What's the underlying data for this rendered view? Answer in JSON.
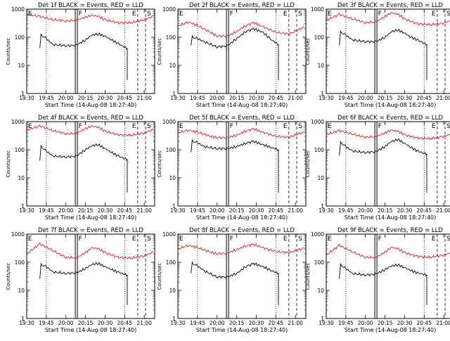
{
  "colors": {
    "events": "#000000",
    "lld": "#e02020",
    "frame": "#000000",
    "background": "#ffffff"
  },
  "common": {
    "xlabel": "Start Time (14-Aug-08 18:27:40)",
    "ylabel": "Counts/sec",
    "x_ticks": [
      "19:30",
      "19:45",
      "20:00",
      "20:15",
      "20:30",
      "20:45",
      "21:00"
    ],
    "y_ticks": [
      "1",
      "10",
      "100",
      "1000"
    ],
    "ylim": [
      1,
      1000
    ],
    "y_scale": "log",
    "markers": {
      "F": "20:08",
      "E": "20:55",
      "S": "21:01"
    }
  },
  "chart_data": [
    {
      "type": "line",
      "title": "Det 1f BLACK = Events, RED = LLD",
      "series": [
        {
          "name": "Events",
          "color": "#000000",
          "x": [
            "19:40",
            "19:41",
            "19:45",
            "19:50",
            "20:00",
            "20:08",
            "20:15",
            "20:20",
            "20:25",
            "20:30",
            "20:35",
            "20:40",
            "20:47",
            "20:47"
          ],
          "y": [
            40,
            120,
            90,
            55,
            50,
            52,
            80,
            120,
            130,
            110,
            80,
            60,
            40,
            3
          ]
        },
        {
          "name": "LLD",
          "color": "#e02020",
          "x": [
            "19:30",
            "19:40",
            "19:50",
            "20:00",
            "20:08",
            "20:15",
            "20:20",
            "20:25",
            "20:30",
            "20:40",
            "20:50",
            "21:00",
            "21:07"
          ],
          "y": [
            650,
            550,
            420,
            380,
            400,
            520,
            600,
            550,
            420,
            330,
            330,
            420,
            560
          ]
        }
      ]
    },
    {
      "type": "line",
      "title": "Det 2f BLACK = Events, RED = LLD",
      "series": [
        {
          "name": "Events",
          "color": "#000000",
          "x": [
            "19:40",
            "19:41",
            "19:45",
            "19:50",
            "20:00",
            "20:08",
            "20:15",
            "20:22",
            "20:28",
            "20:35",
            "20:42",
            "20:47",
            "20:47"
          ],
          "y": [
            50,
            100,
            90,
            70,
            45,
            50,
            90,
            160,
            200,
            150,
            80,
            55,
            3
          ]
        },
        {
          "name": "LLD",
          "color": "#e02020",
          "x": [
            "19:30",
            "19:38",
            "19:45",
            "19:55",
            "20:00",
            "20:08",
            "20:15",
            "20:22",
            "20:28",
            "20:35",
            "20:45",
            "20:55",
            "21:07"
          ],
          "y": [
            250,
            350,
            260,
            150,
            110,
            110,
            160,
            260,
            330,
            240,
            150,
            130,
            230
          ]
        }
      ]
    },
    {
      "type": "line",
      "title": "Det 3f BLACK = Events, RED = LLD",
      "series": [
        {
          "name": "Events",
          "color": "#000000",
          "x": [
            "19:40",
            "19:41",
            "19:45",
            "19:50",
            "20:00",
            "20:08",
            "20:15",
            "20:20",
            "20:25",
            "20:30",
            "20:35",
            "20:40",
            "20:47",
            "20:47"
          ],
          "y": [
            50,
            150,
            120,
            80,
            70,
            70,
            100,
            160,
            180,
            140,
            100,
            80,
            55,
            3
          ]
        },
        {
          "name": "LLD",
          "color": "#e02020",
          "x": [
            "19:30",
            "19:40",
            "19:50",
            "20:00",
            "20:08",
            "20:15",
            "20:20",
            "20:25",
            "20:30",
            "20:40",
            "20:50",
            "21:00",
            "21:07"
          ],
          "y": [
            400,
            650,
            450,
            330,
            350,
            550,
            750,
            650,
            450,
            300,
            280,
            320,
            420
          ]
        }
      ]
    },
    {
      "type": "line",
      "title": "Det 4f BLACK = Events, RED = LLD",
      "series": [
        {
          "name": "Events",
          "color": "#000000",
          "x": [
            "19:40",
            "19:41",
            "19:45",
            "19:50",
            "20:00",
            "20:08",
            "20:15",
            "20:20",
            "20:25",
            "20:30",
            "20:35",
            "20:40",
            "20:47",
            "20:47"
          ],
          "y": [
            40,
            130,
            90,
            60,
            55,
            60,
            100,
            140,
            150,
            110,
            80,
            60,
            45,
            3
          ]
        },
        {
          "name": "LLD",
          "color": "#e02020",
          "x": [
            "19:30",
            "19:40",
            "19:50",
            "20:00",
            "20:08",
            "20:15",
            "20:20",
            "20:25",
            "20:30",
            "20:40",
            "20:50",
            "21:00",
            "21:07"
          ],
          "y": [
            500,
            700,
            480,
            370,
            380,
            560,
            700,
            620,
            460,
            340,
            330,
            400,
            520
          ]
        }
      ]
    },
    {
      "type": "line",
      "title": "Det 5f BLACK = Events, RED = LLD",
      "series": [
        {
          "name": "Events",
          "color": "#000000",
          "x": [
            "19:40",
            "19:41",
            "19:45",
            "19:50",
            "20:00",
            "20:08",
            "20:15",
            "20:22",
            "20:28",
            "20:35",
            "20:42",
            "20:47",
            "20:47"
          ],
          "y": [
            80,
            200,
            180,
            130,
            110,
            110,
            130,
            170,
            200,
            150,
            120,
            100,
            3
          ]
        },
        {
          "name": "LLD",
          "color": "#e02020",
          "x": [
            "19:30",
            "19:38",
            "19:45",
            "19:55",
            "20:00",
            "20:08",
            "20:15",
            "20:22",
            "20:28",
            "20:35",
            "20:45",
            "20:55",
            "21:07"
          ],
          "y": [
            400,
            500,
            420,
            300,
            270,
            270,
            330,
            460,
            550,
            420,
            300,
            280,
            430
          ]
        }
      ]
    },
    {
      "type": "line",
      "title": "Det 6f BLACK = Events, RED = LLD",
      "series": [
        {
          "name": "Events",
          "color": "#000000",
          "x": [
            "19:40",
            "19:41",
            "19:45",
            "19:50",
            "20:00",
            "20:08",
            "20:15",
            "20:20",
            "20:25",
            "20:30",
            "20:35",
            "20:40",
            "20:47",
            "20:47"
          ],
          "y": [
            60,
            180,
            130,
            90,
            80,
            85,
            130,
            200,
            230,
            170,
            120,
            90,
            70,
            3
          ]
        },
        {
          "name": "LLD",
          "color": "#e02020",
          "x": [
            "19:30",
            "19:40",
            "19:50",
            "20:00",
            "20:08",
            "20:15",
            "20:20",
            "20:25",
            "20:30",
            "20:40",
            "20:50",
            "21:00",
            "21:07"
          ],
          "y": [
            350,
            480,
            360,
            280,
            290,
            400,
            500,
            450,
            340,
            260,
            250,
            300,
            380
          ]
        }
      ]
    },
    {
      "type": "line",
      "title": "Det 7f BLACK = Events, RED = LLD",
      "series": [
        {
          "name": "Events",
          "color": "#000000",
          "x": [
            "19:40",
            "19:41",
            "19:45",
            "19:50",
            "20:00",
            "20:08",
            "20:15",
            "20:20",
            "20:25",
            "20:30",
            "20:35",
            "20:40",
            "20:47",
            "20:47"
          ],
          "y": [
            25,
            80,
            70,
            45,
            40,
            42,
            60,
            85,
            90,
            70,
            55,
            45,
            35,
            3
          ]
        },
        {
          "name": "LLD",
          "color": "#e02020",
          "x": [
            "19:30",
            "19:40",
            "19:50",
            "20:00",
            "20:08",
            "20:15",
            "20:20",
            "20:25",
            "20:30",
            "20:40",
            "20:50",
            "21:00",
            "21:07"
          ],
          "y": [
            200,
            450,
            260,
            150,
            140,
            220,
            330,
            300,
            220,
            150,
            140,
            170,
            230
          ]
        }
      ]
    },
    {
      "type": "line",
      "title": "Det 8f BLACK = Events, RED = LLD",
      "series": [
        {
          "name": "Events",
          "color": "#000000",
          "x": [
            "19:40",
            "19:41",
            "19:45",
            "19:50",
            "20:00",
            "20:08",
            "20:15",
            "20:22",
            "20:28",
            "20:35",
            "20:42",
            "20:47",
            "20:47"
          ],
          "y": [
            40,
            90,
            75,
            50,
            30,
            30,
            40,
            70,
            90,
            70,
            50,
            40,
            3
          ]
        },
        {
          "name": "LLD",
          "color": "#e02020",
          "x": [
            "19:30",
            "19:38",
            "19:45",
            "19:55",
            "20:00",
            "20:08",
            "20:15",
            "20:22",
            "20:28",
            "20:35",
            "20:45",
            "20:55",
            "21:07"
          ],
          "y": [
            300,
            400,
            330,
            230,
            200,
            210,
            280,
            380,
            430,
            330,
            240,
            220,
            320
          ]
        }
      ]
    },
    {
      "type": "line",
      "title": "Det 9f BLACK = Events, RED = LLD",
      "series": [
        {
          "name": "Events",
          "color": "#000000",
          "x": [
            "19:40",
            "19:41",
            "19:45",
            "19:50",
            "20:00",
            "20:08",
            "20:15",
            "20:20",
            "20:25",
            "20:30",
            "20:35",
            "20:40",
            "20:47",
            "20:47"
          ],
          "y": [
            25,
            80,
            60,
            40,
            35,
            38,
            55,
            75,
            80,
            65,
            50,
            42,
            35,
            3
          ]
        },
        {
          "name": "LLD",
          "color": "#e02020",
          "x": [
            "19:30",
            "19:40",
            "19:50",
            "20:00",
            "20:08",
            "20:15",
            "20:20",
            "20:25",
            "20:30",
            "20:40",
            "20:50",
            "21:00",
            "21:07"
          ],
          "y": [
            180,
            400,
            230,
            150,
            145,
            230,
            340,
            300,
            220,
            160,
            150,
            180,
            230
          ]
        }
      ]
    }
  ]
}
